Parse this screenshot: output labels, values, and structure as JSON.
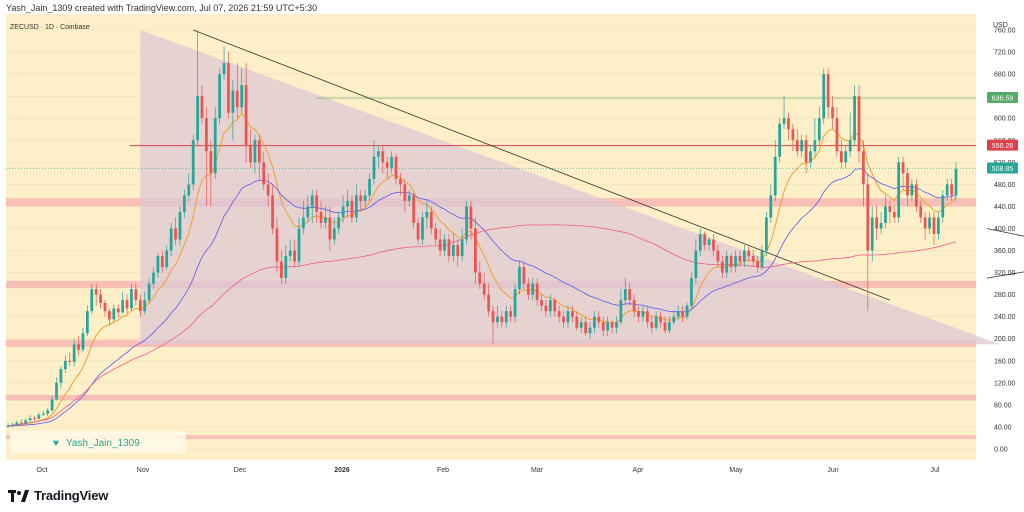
{
  "caption": "Yash_Jain_1309 created with TradingView.com, Jul 07, 2026 21:59 UTC+5:30",
  "symbol": "ZECUSD · 1D · Coinbase",
  "currency": "USD",
  "watermark": "Yash_Jain_1309",
  "brand": "TradingView",
  "colors": {
    "background": "#fdefc8",
    "up": "#26a69a",
    "down": "#ef5350",
    "ema_fast": "#f0a030",
    "ema_mid": "#5b5bf0",
    "ema_slow": "#ef5b8a",
    "triangle": "#dcc8d4",
    "zone": "#f6b3b3",
    "resistance": "#e0404a",
    "green_line": "#55aa66"
  },
  "chart_data": {
    "type": "candlestick",
    "ylim": [
      0,
      800
    ],
    "y_ticks": [
      "0.00",
      "40.00",
      "80.00",
      "120.00",
      "160.00",
      "200.00",
      "240.00",
      "280.00",
      "320.00",
      "360.00",
      "400.00",
      "440.00",
      "480.00",
      "520.00",
      "560.00",
      "600.00",
      "640.00",
      "680.00",
      "720.00",
      "760.00"
    ],
    "x_ticks": [
      "Oct",
      "Nov",
      "Dec",
      "2026",
      "Feb",
      "Mar",
      "Apr",
      "May",
      "Jun",
      "Jul"
    ],
    "price_labels": [
      {
        "value": 636.59,
        "text": "636.59",
        "color": "#55aa66"
      },
      {
        "value": 550.28,
        "text": "550.28",
        "color": "#e0404a"
      },
      {
        "value": 508.85,
        "text": "508.85",
        "color": "#26a69a"
      }
    ],
    "support_zones": [
      [
        18,
        25
      ],
      [
        88,
        98
      ],
      [
        185,
        198
      ],
      [
        292,
        305
      ],
      [
        440,
        455
      ]
    ],
    "resistance_level": 550.28,
    "green_level": 636.59,
    "candles": [
      [
        40,
        42,
        47,
        38
      ],
      [
        42,
        44,
        48,
        40
      ],
      [
        44,
        48,
        52,
        42
      ],
      [
        48,
        46,
        54,
        44
      ],
      [
        46,
        52,
        55,
        44
      ],
      [
        52,
        56,
        62,
        50
      ],
      [
        56,
        55,
        60,
        50
      ],
      [
        55,
        62,
        66,
        53
      ],
      [
        62,
        64,
        70,
        60
      ],
      [
        64,
        70,
        74,
        60
      ],
      [
        70,
        90,
        96,
        68
      ],
      [
        90,
        120,
        130,
        88
      ],
      [
        120,
        145,
        150,
        110
      ],
      [
        145,
        160,
        170,
        138
      ],
      [
        160,
        158,
        175,
        150
      ],
      [
        158,
        190,
        200,
        150
      ],
      [
        190,
        180,
        205,
        170
      ],
      [
        180,
        210,
        220,
        175
      ],
      [
        210,
        250,
        260,
        205
      ],
      [
        250,
        290,
        300,
        245
      ],
      [
        290,
        280,
        300,
        260
      ],
      [
        280,
        265,
        290,
        255
      ],
      [
        265,
        250,
        270,
        240
      ],
      [
        250,
        235,
        255,
        225
      ],
      [
        235,
        255,
        262,
        230
      ],
      [
        255,
        248,
        262,
        238
      ],
      [
        248,
        270,
        285,
        245
      ],
      [
        270,
        255,
        280,
        245
      ],
      [
        255,
        290,
        300,
        250
      ],
      [
        290,
        270,
        300,
        260
      ],
      [
        270,
        250,
        280,
        240
      ],
      [
        250,
        270,
        285,
        245
      ],
      [
        270,
        300,
        310,
        265
      ],
      [
        300,
        320,
        330,
        290
      ],
      [
        320,
        350,
        355,
        310
      ],
      [
        350,
        330,
        360,
        320
      ],
      [
        330,
        360,
        370,
        325
      ],
      [
        360,
        400,
        410,
        350
      ],
      [
        400,
        380,
        420,
        370
      ],
      [
        380,
        430,
        440,
        370
      ],
      [
        430,
        460,
        470,
        420
      ],
      [
        460,
        480,
        500,
        450
      ],
      [
        480,
        560,
        570,
        470
      ],
      [
        560,
        640,
        760,
        550
      ],
      [
        640,
        600,
        660,
        590
      ],
      [
        600,
        540,
        620,
        440
      ],
      [
        540,
        500,
        560,
        440
      ],
      [
        500,
        600,
        620,
        490
      ],
      [
        600,
        680,
        690,
        590
      ],
      [
        680,
        700,
        730,
        670
      ],
      [
        700,
        610,
        720,
        600
      ],
      [
        610,
        650,
        670,
        560
      ],
      [
        650,
        620,
        700,
        600
      ],
      [
        620,
        660,
        690,
        610
      ],
      [
        660,
        550,
        700,
        520
      ],
      [
        550,
        520,
        580,
        510
      ],
      [
        520,
        560,
        570,
        500
      ],
      [
        560,
        520,
        570,
        490
      ],
      [
        520,
        480,
        540,
        470
      ],
      [
        480,
        460,
        500,
        440
      ],
      [
        460,
        400,
        480,
        390
      ],
      [
        400,
        340,
        420,
        320
      ],
      [
        340,
        310,
        360,
        300
      ],
      [
        310,
        350,
        370,
        300
      ],
      [
        350,
        360,
        380,
        340
      ],
      [
        360,
        340,
        380,
        330
      ],
      [
        340,
        400,
        420,
        330
      ],
      [
        400,
        420,
        450,
        390
      ],
      [
        420,
        440,
        460,
        410
      ],
      [
        440,
        460,
        470,
        410
      ],
      [
        460,
        430,
        470,
        410
      ],
      [
        430,
        410,
        450,
        400
      ],
      [
        410,
        420,
        440,
        400
      ],
      [
        420,
        380,
        440,
        360
      ],
      [
        380,
        400,
        420,
        370
      ],
      [
        400,
        420,
        430,
        390
      ],
      [
        420,
        440,
        460,
        410
      ],
      [
        440,
        450,
        470,
        420
      ],
      [
        450,
        420,
        460,
        410
      ],
      [
        420,
        460,
        480,
        410
      ],
      [
        460,
        450,
        470,
        430
      ],
      [
        450,
        460,
        470,
        440
      ],
      [
        460,
        490,
        500,
        450
      ],
      [
        490,
        530,
        560,
        480
      ],
      [
        530,
        540,
        550,
        510
      ],
      [
        540,
        520,
        550,
        500
      ],
      [
        520,
        510,
        530,
        490
      ],
      [
        510,
        530,
        540,
        500
      ],
      [
        530,
        490,
        535,
        480
      ],
      [
        490,
        480,
        500,
        460
      ],
      [
        480,
        450,
        490,
        430
      ],
      [
        450,
        460,
        470,
        440
      ],
      [
        460,
        410,
        465,
        400
      ],
      [
        410,
        380,
        420,
        370
      ],
      [
        380,
        420,
        430,
        370
      ],
      [
        420,
        430,
        450,
        400
      ],
      [
        430,
        400,
        440,
        390
      ],
      [
        400,
        380,
        410,
        370
      ],
      [
        380,
        360,
        400,
        350
      ],
      [
        360,
        380,
        390,
        350
      ],
      [
        380,
        350,
        390,
        340
      ],
      [
        350,
        370,
        390,
        340
      ],
      [
        370,
        350,
        380,
        330
      ],
      [
        350,
        380,
        400,
        340
      ],
      [
        380,
        440,
        450,
        370
      ],
      [
        440,
        400,
        450,
        380
      ],
      [
        400,
        320,
        420,
        300
      ],
      [
        320,
        300,
        340,
        290
      ],
      [
        300,
        280,
        320,
        270
      ],
      [
        280,
        250,
        300,
        240
      ],
      [
        250,
        230,
        260,
        190
      ],
      [
        230,
        240,
        260,
        220
      ],
      [
        240,
        230,
        250,
        220
      ],
      [
        230,
        250,
        260,
        220
      ],
      [
        250,
        240,
        260,
        230
      ],
      [
        240,
        290,
        300,
        230
      ],
      [
        290,
        330,
        340,
        280
      ],
      [
        330,
        300,
        340,
        290
      ],
      [
        300,
        280,
        310,
        270
      ],
      [
        280,
        300,
        310,
        270
      ],
      [
        300,
        270,
        310,
        260
      ],
      [
        270,
        260,
        280,
        250
      ],
      [
        260,
        250,
        270,
        240
      ],
      [
        250,
        270,
        280,
        240
      ],
      [
        270,
        250,
        275,
        240
      ],
      [
        250,
        240,
        260,
        230
      ],
      [
        240,
        230,
        250,
        220
      ],
      [
        230,
        250,
        260,
        220
      ],
      [
        250,
        240,
        260,
        230
      ],
      [
        240,
        220,
        250,
        215
      ],
      [
        220,
        230,
        240,
        210
      ],
      [
        230,
        210,
        240,
        205
      ],
      [
        210,
        220,
        230,
        200
      ],
      [
        220,
        240,
        250,
        210
      ],
      [
        240,
        230,
        250,
        220
      ],
      [
        230,
        215,
        240,
        205
      ],
      [
        215,
        230,
        240,
        205
      ],
      [
        230,
        220,
        235,
        210
      ],
      [
        220,
        230,
        240,
        210
      ],
      [
        230,
        270,
        290,
        225
      ],
      [
        270,
        290,
        310,
        260
      ],
      [
        290,
        270,
        300,
        260
      ],
      [
        270,
        250,
        280,
        240
      ],
      [
        250,
        240,
        260,
        230
      ],
      [
        240,
        250,
        260,
        230
      ],
      [
        250,
        230,
        260,
        220
      ],
      [
        230,
        220,
        240,
        210
      ],
      [
        220,
        240,
        250,
        215
      ],
      [
        240,
        230,
        250,
        220
      ],
      [
        230,
        215,
        240,
        210
      ],
      [
        215,
        230,
        240,
        210
      ],
      [
        230,
        240,
        250,
        225
      ],
      [
        240,
        250,
        260,
        235
      ],
      [
        250,
        240,
        260,
        230
      ],
      [
        240,
        260,
        265,
        235
      ],
      [
        260,
        310,
        320,
        255
      ],
      [
        310,
        360,
        380,
        300
      ],
      [
        360,
        390,
        400,
        350
      ],
      [
        390,
        370,
        395,
        360
      ],
      [
        370,
        380,
        385,
        360
      ],
      [
        380,
        360,
        390,
        350
      ],
      [
        360,
        340,
        370,
        330
      ],
      [
        340,
        320,
        350,
        310
      ],
      [
        320,
        350,
        360,
        310
      ],
      [
        350,
        330,
        355,
        320
      ],
      [
        330,
        350,
        360,
        320
      ],
      [
        350,
        340,
        360,
        330
      ],
      [
        340,
        360,
        370,
        330
      ],
      [
        360,
        350,
        370,
        340
      ],
      [
        350,
        340,
        360,
        330
      ],
      [
        340,
        330,
        350,
        320
      ],
      [
        330,
        360,
        370,
        325
      ],
      [
        360,
        420,
        430,
        350
      ],
      [
        420,
        460,
        480,
        410
      ],
      [
        460,
        530,
        560,
        450
      ],
      [
        530,
        590,
        600,
        520
      ],
      [
        590,
        600,
        640,
        580
      ],
      [
        600,
        580,
        610,
        560
      ],
      [
        580,
        560,
        590,
        540
      ],
      [
        560,
        540,
        580,
        530
      ],
      [
        540,
        560,
        570,
        530
      ],
      [
        560,
        520,
        570,
        500
      ],
      [
        520,
        540,
        550,
        510
      ],
      [
        540,
        560,
        600,
        530
      ],
      [
        560,
        600,
        620,
        550
      ],
      [
        600,
        680,
        690,
        590
      ],
      [
        680,
        620,
        690,
        600
      ],
      [
        620,
        600,
        640,
        580
      ],
      [
        600,
        540,
        620,
        530
      ],
      [
        540,
        520,
        560,
        510
      ],
      [
        520,
        540,
        550,
        510
      ],
      [
        540,
        560,
        610,
        530
      ],
      [
        560,
        640,
        660,
        550
      ],
      [
        640,
        540,
        660,
        520
      ],
      [
        540,
        480,
        560,
        440
      ],
      [
        480,
        360,
        500,
        250
      ],
      [
        360,
        420,
        440,
        340
      ],
      [
        420,
        400,
        440,
        380
      ],
      [
        400,
        410,
        430,
        390
      ],
      [
        410,
        440,
        460,
        400
      ],
      [
        440,
        430,
        450,
        410
      ],
      [
        430,
        420,
        440,
        410
      ],
      [
        420,
        520,
        530,
        410
      ],
      [
        520,
        500,
        530,
        470
      ],
      [
        500,
        460,
        510,
        440
      ],
      [
        460,
        480,
        490,
        450
      ],
      [
        480,
        440,
        490,
        430
      ],
      [
        440,
        420,
        450,
        410
      ],
      [
        420,
        400,
        430,
        380
      ],
      [
        400,
        420,
        430,
        390
      ],
      [
        420,
        390,
        430,
        370
      ],
      [
        390,
        420,
        430,
        380
      ],
      [
        420,
        460,
        470,
        410
      ],
      [
        460,
        480,
        490,
        450
      ],
      [
        480,
        460,
        490,
        450
      ],
      [
        460,
        508,
        520,
        450
      ]
    ]
  }
}
